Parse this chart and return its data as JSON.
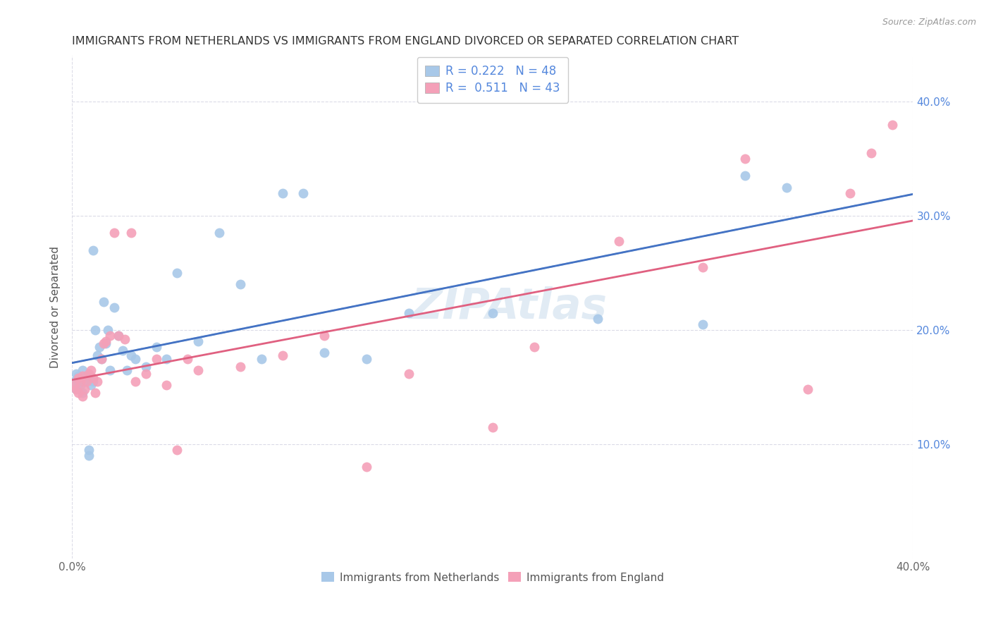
{
  "title": "IMMIGRANTS FROM NETHERLANDS VS IMMIGRANTS FROM ENGLAND DIVORCED OR SEPARATED CORRELATION CHART",
  "source": "Source: ZipAtlas.com",
  "ylabel": "Divorced or Separated",
  "xmin": 0.0,
  "xmax": 0.4,
  "ymin": 0.0,
  "ymax": 0.44,
  "xticks": [
    0.0,
    0.4
  ],
  "xticklabels": [
    "0.0%",
    "40.0%"
  ],
  "yticks_right": [
    0.1,
    0.2,
    0.3,
    0.4
  ],
  "ytick_labels_right": [
    "10.0%",
    "20.0%",
    "30.0%",
    "40.0%"
  ],
  "watermark": "ZIPAtlas",
  "legend_labels": [
    "Immigrants from Netherlands",
    "Immigrants from England"
  ],
  "blue_color": "#A8C8E8",
  "pink_color": "#F4A0B8",
  "blue_line_color": "#4472C4",
  "pink_line_color": "#E06080",
  "blue_dashed_color": "#90C8D8",
  "netherlands_x": [
    0.001,
    0.002,
    0.002,
    0.003,
    0.003,
    0.004,
    0.004,
    0.005,
    0.005,
    0.006,
    0.007,
    0.008,
    0.008,
    0.009,
    0.01,
    0.01,
    0.011,
    0.012,
    0.013,
    0.014,
    0.015,
    0.016,
    0.017,
    0.018,
    0.02,
    0.022,
    0.024,
    0.026,
    0.028,
    0.03,
    0.035,
    0.04,
    0.045,
    0.05,
    0.06,
    0.07,
    0.08,
    0.09,
    0.1,
    0.11,
    0.12,
    0.14,
    0.16,
    0.2,
    0.25,
    0.3,
    0.32,
    0.34
  ],
  "netherlands_y": [
    0.155,
    0.148,
    0.162,
    0.155,
    0.16,
    0.152,
    0.158,
    0.145,
    0.165,
    0.155,
    0.16,
    0.095,
    0.09,
    0.152,
    0.155,
    0.27,
    0.2,
    0.178,
    0.185,
    0.175,
    0.225,
    0.188,
    0.2,
    0.165,
    0.22,
    0.195,
    0.182,
    0.165,
    0.178,
    0.175,
    0.168,
    0.185,
    0.175,
    0.25,
    0.19,
    0.285,
    0.24,
    0.175,
    0.32,
    0.32,
    0.18,
    0.175,
    0.215,
    0.215,
    0.21,
    0.205,
    0.335,
    0.325
  ],
  "england_x": [
    0.001,
    0.002,
    0.003,
    0.003,
    0.004,
    0.005,
    0.005,
    0.006,
    0.007,
    0.008,
    0.009,
    0.01,
    0.011,
    0.012,
    0.014,
    0.015,
    0.016,
    0.018,
    0.02,
    0.022,
    0.025,
    0.028,
    0.03,
    0.035,
    0.04,
    0.045,
    0.05,
    0.055,
    0.06,
    0.08,
    0.1,
    0.12,
    0.14,
    0.16,
    0.2,
    0.22,
    0.26,
    0.3,
    0.32,
    0.35,
    0.37,
    0.38,
    0.39
  ],
  "england_y": [
    0.152,
    0.148,
    0.158,
    0.145,
    0.155,
    0.16,
    0.142,
    0.148,
    0.155,
    0.162,
    0.165,
    0.158,
    0.145,
    0.155,
    0.175,
    0.188,
    0.19,
    0.195,
    0.285,
    0.195,
    0.192,
    0.285,
    0.155,
    0.162,
    0.175,
    0.152,
    0.095,
    0.175,
    0.165,
    0.168,
    0.178,
    0.195,
    0.08,
    0.162,
    0.115,
    0.185,
    0.278,
    0.255,
    0.35,
    0.148,
    0.32,
    0.355,
    0.38
  ]
}
